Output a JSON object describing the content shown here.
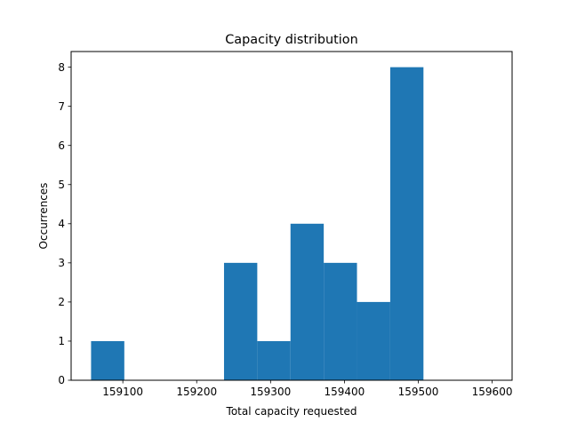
{
  "chart_data": {
    "type": "bar",
    "title": "Capacity distribution",
    "xlabel": "Total capacity requested",
    "ylabel": "Occurrences",
    "bins": [
      {
        "start": 159057,
        "end": 159102,
        "count": 1
      },
      {
        "start": 159102,
        "end": 159147,
        "count": 0
      },
      {
        "start": 159147,
        "end": 159192,
        "count": 0
      },
      {
        "start": 159192,
        "end": 159237,
        "count": 0
      },
      {
        "start": 159237,
        "end": 159282,
        "count": 3
      },
      {
        "start": 159282,
        "end": 159327,
        "count": 1
      },
      {
        "start": 159327,
        "end": 159372,
        "count": 4
      },
      {
        "start": 159372,
        "end": 159417,
        "count": 3
      },
      {
        "start": 159417,
        "end": 159462,
        "count": 2
      },
      {
        "start": 159462,
        "end": 159507,
        "count": 8
      }
    ],
    "xlim": [
      159030,
      159627
    ],
    "ylim": [
      0,
      8.4
    ],
    "xticks": [
      159100,
      159200,
      159300,
      159400,
      159500,
      159600
    ],
    "xtick_labels": [
      "159100",
      "159200",
      "159300",
      "159400",
      "159500",
      "159600"
    ],
    "yticks": [
      0,
      1,
      2,
      3,
      4,
      5,
      6,
      7,
      8
    ],
    "ytick_labels": [
      "0",
      "1",
      "2",
      "3",
      "4",
      "5",
      "6",
      "7",
      "8"
    ],
    "bar_color": "#1f77b4",
    "grid": false,
    "legend": false
  }
}
